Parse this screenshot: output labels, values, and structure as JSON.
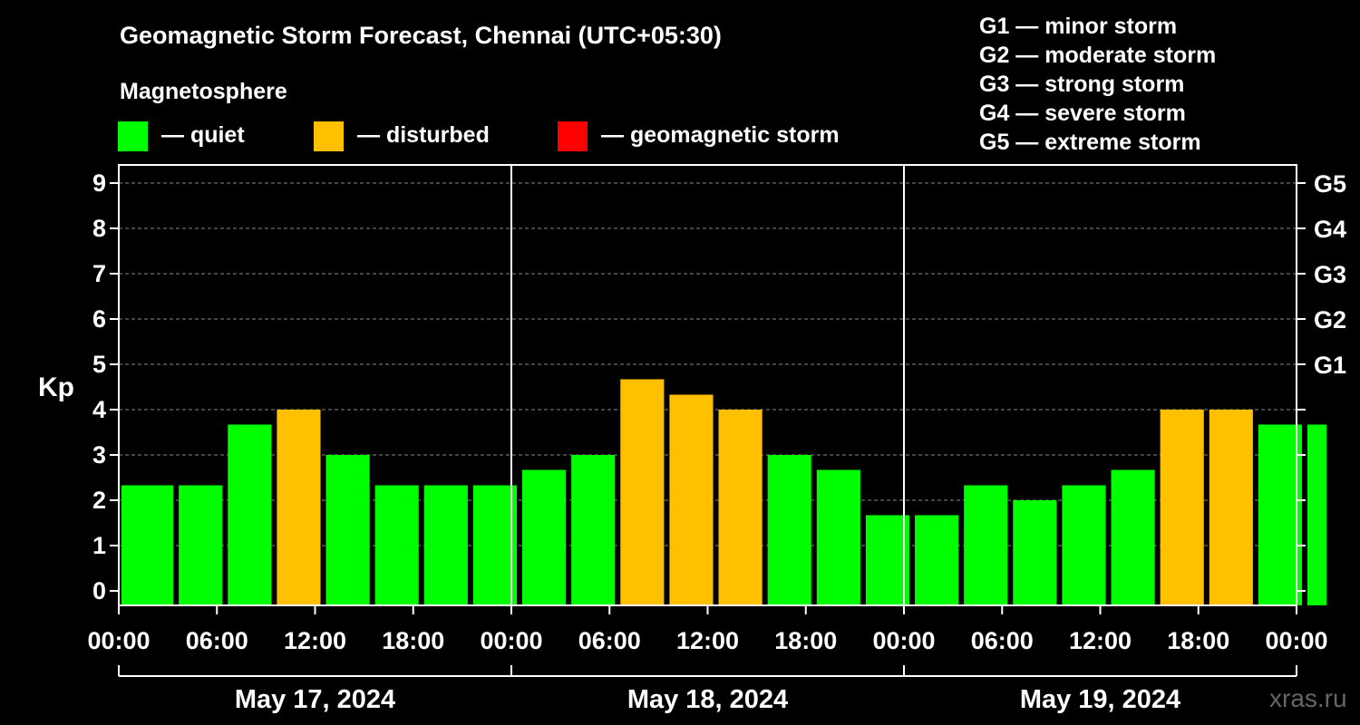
{
  "chart_data": {
    "type": "bar",
    "title": "Geomagnetic Storm Forecast, Chennai (UTC+05:30)",
    "ylabel": "Kp",
    "ylim": [
      0,
      9.5
    ],
    "yticks": [
      "0",
      "1",
      "2",
      "3",
      "4",
      "5",
      "6",
      "7",
      "8",
      "9"
    ],
    "gscale": [
      {
        "label": "G1",
        "kp": 5
      },
      {
        "label": "G2",
        "kp": 6
      },
      {
        "label": "G3",
        "kp": 7
      },
      {
        "label": "G4",
        "kp": 8
      },
      {
        "label": "G5",
        "kp": 9
      }
    ],
    "xticks": [
      "00:00",
      "06:00",
      "12:00",
      "18:00",
      "00:00",
      "06:00",
      "12:00",
      "18:00",
      "00:00",
      "06:00",
      "12:00",
      "18:00",
      "00:00"
    ],
    "days": [
      "May 17, 2024",
      "May 18, 2024",
      "May 19, 2024"
    ],
    "legend_title": "Magnetosphere",
    "legend": [
      {
        "label": "— quiet",
        "color": "#00ff00"
      },
      {
        "label": "— disturbed",
        "color": "#ffc000"
      },
      {
        "label": "— geomagnetic storm",
        "color": "#ff0000"
      }
    ],
    "storm_levels": [
      "G1 — minor storm",
      "G2 — moderate storm",
      "G3 — strong storm",
      "G4 — severe storm",
      "G5 — extreme storm"
    ],
    "bars": [
      {
        "start": 0.0,
        "end": 3.5,
        "kp": 2.33,
        "status": "quiet"
      },
      {
        "start": 3.5,
        "end": 6.5,
        "kp": 2.33,
        "status": "quiet"
      },
      {
        "start": 6.5,
        "end": 9.5,
        "kp": 3.67,
        "status": "quiet"
      },
      {
        "start": 9.5,
        "end": 12.5,
        "kp": 4.0,
        "status": "disturbed"
      },
      {
        "start": 12.5,
        "end": 15.5,
        "kp": 3.0,
        "status": "quiet"
      },
      {
        "start": 15.5,
        "end": 18.5,
        "kp": 2.33,
        "status": "quiet"
      },
      {
        "start": 18.5,
        "end": 21.5,
        "kp": 2.33,
        "status": "quiet"
      },
      {
        "start": 21.5,
        "end": 24.5,
        "kp": 2.33,
        "status": "quiet"
      },
      {
        "start": 24.5,
        "end": 27.5,
        "kp": 2.67,
        "status": "quiet"
      },
      {
        "start": 27.5,
        "end": 30.5,
        "kp": 3.0,
        "status": "quiet"
      },
      {
        "start": 30.5,
        "end": 33.5,
        "kp": 4.67,
        "status": "disturbed"
      },
      {
        "start": 33.5,
        "end": 36.5,
        "kp": 4.33,
        "status": "disturbed"
      },
      {
        "start": 36.5,
        "end": 39.5,
        "kp": 4.0,
        "status": "disturbed"
      },
      {
        "start": 39.5,
        "end": 42.5,
        "kp": 3.0,
        "status": "quiet"
      },
      {
        "start": 42.5,
        "end": 45.5,
        "kp": 2.67,
        "status": "quiet"
      },
      {
        "start": 45.5,
        "end": 48.5,
        "kp": 1.67,
        "status": "quiet"
      },
      {
        "start": 48.5,
        "end": 51.5,
        "kp": 1.67,
        "status": "quiet"
      },
      {
        "start": 51.5,
        "end": 54.5,
        "kp": 2.33,
        "status": "quiet"
      },
      {
        "start": 54.5,
        "end": 57.5,
        "kp": 2.0,
        "status": "quiet"
      },
      {
        "start": 57.5,
        "end": 60.5,
        "kp": 2.33,
        "status": "quiet"
      },
      {
        "start": 60.5,
        "end": 63.5,
        "kp": 2.67,
        "status": "quiet"
      },
      {
        "start": 63.5,
        "end": 66.5,
        "kp": 4.0,
        "status": "disturbed"
      },
      {
        "start": 66.5,
        "end": 69.5,
        "kp": 4.0,
        "status": "disturbed"
      },
      {
        "start": 69.5,
        "end": 72.5,
        "kp": 3.67,
        "status": "quiet"
      },
      {
        "start": 72.5,
        "end": 74.0,
        "kp": 3.67,
        "status": "quiet"
      }
    ],
    "status_colors": {
      "quiet": "#00ff00",
      "disturbed": "#ffc000",
      "storm": "#ff0000"
    },
    "watermark": "xras.ru"
  }
}
